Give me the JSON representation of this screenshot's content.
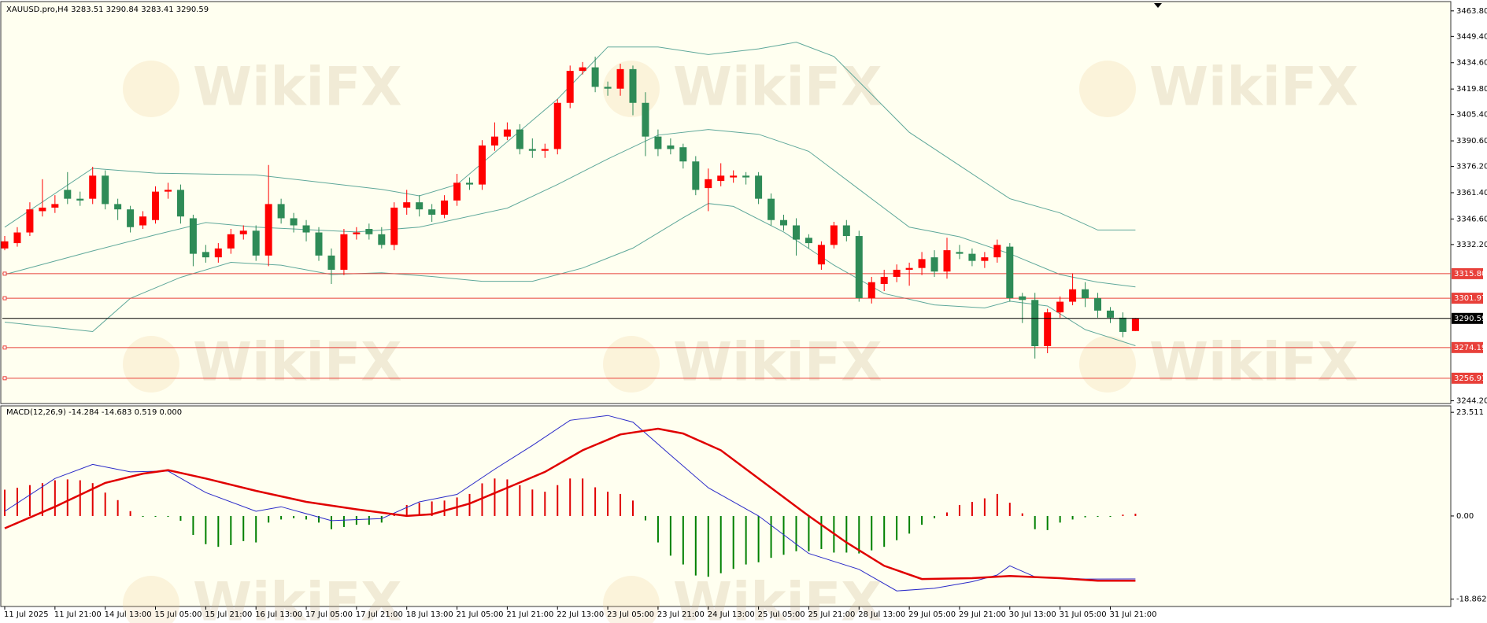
{
  "watermark": "WikiFX",
  "chart_data": [
    {
      "type": "candlestick",
      "title": "XAUUSD.pro,H4  3283.51 3290.84 3283.41 3290.59",
      "open": [
        3330,
        3333,
        3339,
        3351,
        3353,
        3363,
        3358,
        3358,
        3371,
        3355,
        3352,
        3343,
        3346,
        3362,
        3363,
        3347,
        3328,
        3325,
        3330,
        3338,
        3340,
        3326,
        3355,
        3347,
        3343,
        3339,
        3326,
        3318,
        3338,
        3341,
        3338,
        3332,
        3353,
        3356,
        3352,
        3349,
        3357,
        3367,
        3366,
        3388,
        3393,
        3397,
        3386,
        3385,
        3386,
        3412,
        3430,
        3432,
        3421,
        3420,
        3431,
        3412,
        3393,
        3388,
        3387,
        3379,
        3364,
        3368,
        3370,
        3371,
        3371,
        3358,
        3346,
        3343,
        3336,
        3321,
        3332,
        3343,
        3337,
        3302,
        3310,
        3314,
        3318,
        3319,
        3325,
        3317,
        3328,
        3327,
        3323,
        3325,
        3331,
        3303,
        3301,
        3275,
        3294,
        3300,
        3307,
        3302,
        3295,
        3291,
        3283.51
      ],
      "high": [
        3337,
        3342,
        3356,
        3369,
        3360,
        3373,
        3362,
        3376,
        3374,
        3358,
        3354,
        3351,
        3365,
        3367,
        3366,
        3349,
        3332,
        3333,
        3341,
        3343,
        3343,
        3377,
        3358,
        3350,
        3346,
        3342,
        3330,
        3341,
        3342,
        3344,
        3342,
        3356,
        3363,
        3360,
        3355,
        3360,
        3372,
        3370,
        3391,
        3401,
        3401,
        3400,
        3392,
        3389,
        3414,
        3433,
        3435,
        3438,
        3424,
        3434,
        3433,
        3418,
        3397,
        3392,
        3389,
        3382,
        3375,
        3378,
        3374,
        3373,
        3373,
        3361,
        3349,
        3347,
        3338,
        3334,
        3345,
        3346,
        3340,
        3314,
        3318,
        3321,
        3322,
        3328,
        3329,
        3336,
        3332,
        3330,
        3328,
        3335,
        3333,
        3305,
        3305,
        3296,
        3303,
        3316,
        3311,
        3305,
        3297,
        3294,
        3290.84
      ],
      "low": [
        3329,
        3331,
        3337,
        3348,
        3350,
        3355,
        3354,
        3355,
        3352,
        3346,
        3339,
        3341,
        3344,
        3358,
        3344,
        3320,
        3322,
        3322,
        3327,
        3335,
        3323,
        3320,
        3344,
        3339,
        3334,
        3323,
        3310,
        3315,
        3335,
        3335,
        3330,
        3329,
        3349,
        3348,
        3345,
        3347,
        3354,
        3363,
        3363,
        3385,
        3391,
        3383,
        3381,
        3381,
        3383,
        3409,
        3428,
        3418,
        3416,
        3416,
        3405,
        3382,
        3382,
        3383,
        3375,
        3360,
        3351,
        3365,
        3367,
        3366,
        3355,
        3343,
        3340,
        3326,
        3330,
        3318,
        3330,
        3334,
        3300,
        3299,
        3306,
        3311,
        3309,
        3315,
        3314,
        3313,
        3324,
        3320,
        3319,
        3322,
        3300,
        3288,
        3268,
        3271,
        3291,
        3298,
        3297,
        3291,
        3288,
        3280,
        3283.41
      ],
      "close": [
        3334,
        3339,
        3352,
        3353,
        3355,
        3358,
        3357,
        3371,
        3355,
        3352,
        3342,
        3348,
        3362,
        3363,
        3348,
        3327,
        3325,
        3330,
        3338,
        3340,
        3326,
        3355,
        3347,
        3343,
        3339,
        3326,
        3318,
        3338,
        3339,
        3338,
        3332,
        3353,
        3356,
        3352,
        3349,
        3357,
        3367,
        3366,
        3388,
        3393,
        3397,
        3386,
        3385,
        3386,
        3412,
        3430,
        3432,
        3421,
        3420,
        3431,
        3412,
        3393,
        3386,
        3386,
        3379,
        3363,
        3369,
        3371,
        3371,
        3370,
        3358,
        3346,
        3343,
        3335,
        3333,
        3332,
        3343,
        3337,
        3302,
        3311,
        3314,
        3318,
        3319,
        3324,
        3317,
        3329,
        3327,
        3323,
        3325,
        3332,
        3302,
        3301,
        3275,
        3294,
        3300,
        3307,
        3302,
        3295,
        3291,
        3283,
        3290.59
      ],
      "up_color": "#ff0000",
      "down_color": "#2e8b57",
      "series": [
        {
          "color": "#5fa89a",
          "x": [
            0,
            7,
            12,
            20,
            30,
            33,
            36,
            40,
            44,
            48,
            52,
            56,
            60,
            63,
            66,
            69,
            72,
            76,
            80,
            84,
            87,
            90
          ],
          "values": [
            3342.0,
            3375.1,
            3372.4,
            3371.4,
            3363.3,
            3359.6,
            3366.0,
            3390.1,
            3414.1,
            3443.5,
            3443.5,
            3439.2,
            3442.4,
            3446.2,
            3438.1,
            3416.8,
            3395.4,
            3376.7,
            3358.0,
            3350.0,
            3340.4,
            3340.4
          ]
        },
        {
          "color": "#5fa89a",
          "x": [
            0,
            7,
            12,
            16,
            20,
            28,
            33,
            40,
            44,
            48,
            52,
            56,
            60,
            64,
            68,
            72,
            76,
            80,
            84,
            87,
            90
          ],
          "values": [
            3315.3,
            3328.6,
            3337.7,
            3344.6,
            3342.0,
            3339.3,
            3342.0,
            3352.7,
            3366.0,
            3380.4,
            3393.8,
            3397.0,
            3394.3,
            3384.7,
            3363.3,
            3342.0,
            3336.6,
            3327.0,
            3315.3,
            3311.0,
            3308.3
          ]
        },
        {
          "color": "#5fa89a",
          "x": [
            0,
            7,
            10,
            14,
            18,
            22,
            26,
            30,
            34,
            38,
            42,
            46,
            50,
            54,
            56,
            58,
            62,
            66,
            70,
            74,
            78,
            80,
            83,
            86,
            90
          ],
          "values": [
            3288.5,
            3283.2,
            3301.9,
            3313.7,
            3322.2,
            3320.6,
            3315.3,
            3316.3,
            3314.2,
            3311.5,
            3311.5,
            3319.0,
            3330.2,
            3347.3,
            3355.3,
            3353.7,
            3339.3,
            3320.6,
            3304.6,
            3298.2,
            3296.5,
            3300.3,
            3297.6,
            3284.3,
            3275.2
          ]
        }
      ],
      "levels": [
        {
          "value": 3315.8,
          "label": "3315.80"
        },
        3301.97,
        3274.19,
        3256.91
      ],
      "level_color": "#e8403a",
      "current_price": 3290.59,
      "ylim": [
        3243.1,
        3468.6
      ],
      "yticks": [
        {
          "value": 3463.8,
          "label": "3463.80"
        },
        {
          "value": 3449.4,
          "label": "3449.40"
        },
        {
          "value": 3434.6,
          "label": "3434.60"
        },
        {
          "value": 3419.8,
          "label": "3419.80"
        },
        {
          "value": 3405.4,
          "label": "3405.40"
        },
        {
          "value": 3390.6,
          "label": "3390.60"
        },
        {
          "value": 3376.2,
          "label": "3376.20"
        },
        {
          "value": 3361.4,
          "label": "3361.40"
        },
        {
          "value": 3346.6,
          "label": "3346.60"
        },
        {
          "value": 3332.2,
          "label": "3332.20"
        },
        {
          "value": 3244.2,
          "label": "3244.20"
        }
      ]
    },
    {
      "type": "macd",
      "title": "MACD(12,26,9) -14.284 -14.683 0.519 0.000",
      "categories": [
        "11 Jul 2025",
        null,
        null,
        null,
        "11 Jul 21:00",
        null,
        null,
        null,
        "14 Jul 13:00",
        null,
        null,
        null,
        "15 Jul 05:00",
        null,
        null,
        null,
        "15 Jul 21:00",
        null,
        null,
        null,
        "16 Jul 13:00",
        null,
        null,
        null,
        "17 Jul 05:00",
        null,
        null,
        null,
        "17 Jul 21:00",
        null,
        null,
        null,
        "18 Jul 13:00",
        null,
        null,
        null,
        "21 Jul 05:00",
        null,
        null,
        null,
        "21 Jul 21:00",
        null,
        null,
        null,
        "22 Jul 13:00",
        null,
        null,
        null,
        "23 Jul 05:00",
        null,
        null,
        null,
        "23 Jul 21:00",
        null,
        null,
        null,
        "24 Jul 13:00",
        null,
        null,
        null,
        "25 Jul 05:00",
        null,
        null,
        null,
        "25 Jul 21:00",
        null,
        null,
        null,
        "28 Jul 13:00",
        null,
        null,
        null,
        "29 Jul 05:00",
        null,
        null,
        null,
        "29 Jul 21:00",
        null,
        null,
        null,
        "30 Jul 13:00",
        null,
        null,
        null,
        "31 Jul 05:00",
        null,
        null,
        null,
        "31 Jul 21:00",
        null,
        null
      ],
      "histogram": {
        "up_color": "#e00000",
        "down_color": "#008000",
        "values": [
          5.96,
          6.4,
          7.0,
          7.45,
          8.1,
          8.3,
          8.1,
          7.45,
          5.3,
          3.6,
          1.1,
          -0.2,
          -0.2,
          -0.2,
          -1.1,
          -4.3,
          -6.4,
          -7.0,
          -6.6,
          -5.7,
          -6.0,
          -1.5,
          -0.8,
          -0.5,
          -0.8,
          -1.5,
          -3.0,
          -2.5,
          -2.0,
          -2.0,
          -1.5,
          0.3,
          2.5,
          3.0,
          3.3,
          3.5,
          4.2,
          5.0,
          7.4,
          8.5,
          8.3,
          7.0,
          6.0,
          5.5,
          7.0,
          8.5,
          8.5,
          6.5,
          5.5,
          5.0,
          3.5,
          -1.0,
          -6.0,
          -9.0,
          -11.0,
          -13.5,
          -13.8,
          -13.0,
          -12.0,
          -11.0,
          -10.5,
          -9.5,
          -8.8,
          -8.0,
          -8.0,
          -7.5,
          -8.3,
          -8.3,
          -8.5,
          -7.8,
          -7.0,
          -5.5,
          -4.0,
          -2.0,
          -0.5,
          0.8,
          2.5,
          3.2,
          4.0,
          5.0,
          3.0,
          0.6,
          -3.0,
          -3.2,
          -1.5,
          -0.8,
          -0.3,
          -0.2,
          -0.2,
          0.3,
          0.519
        ]
      },
      "series": [
        {
          "color": "#2a2ac8",
          "x": [
            0,
            4,
            7,
            10,
            13,
            16,
            20,
            22,
            26,
            30,
            33,
            36,
            39,
            42,
            45,
            48,
            50,
            53,
            56,
            60,
            64,
            68,
            71,
            74,
            77,
            79,
            80,
            82,
            86,
            90
          ],
          "values": [
            1.06,
            8.5,
            11.7,
            10.0,
            10.2,
            5.3,
            1.06,
            2.1,
            -1.06,
            -0.6,
            3.2,
            4.9,
            10.6,
            16.0,
            21.7,
            22.8,
            21.3,
            13.8,
            6.4,
            0,
            -8.5,
            -12.1,
            -17.0,
            -16.4,
            -14.9,
            -13.4,
            -11.3,
            -13.8,
            -14.3,
            -14.284
          ]
        },
        {
          "color": "#e00000",
          "x": [
            0,
            4,
            8,
            11,
            13,
            16,
            20,
            24,
            28,
            32,
            34,
            37,
            40,
            43,
            46,
            49,
            52,
            54,
            57,
            60,
            64,
            67,
            70,
            73,
            77,
            80,
            84,
            87,
            90
          ],
          "values": [
            -2.8,
            2.1,
            7.5,
            9.6,
            10.4,
            8.5,
            5.7,
            3.2,
            1.5,
            0,
            0.4,
            2.8,
            6.4,
            10.0,
            14.9,
            18.5,
            19.8,
            18.7,
            14.9,
            8.5,
            0,
            -6.0,
            -11.3,
            -14.3,
            -14.1,
            -13.6,
            -14.1,
            -14.7,
            -14.683
          ]
        }
      ],
      "ylim": [
        -20.35,
        24.79
      ],
      "yticks": [
        23.511,
        {
          "value": 0,
          "label": "0.00"
        },
        -18.862
      ]
    }
  ]
}
